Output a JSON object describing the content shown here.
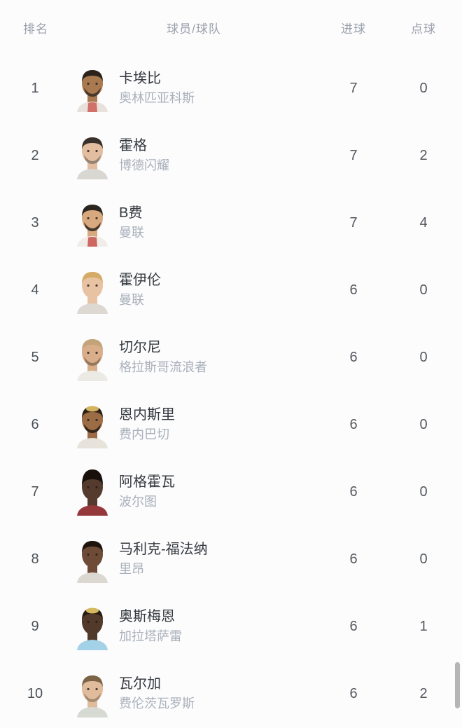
{
  "colors": {
    "bg": "#fcfcfd",
    "header_text": "#999fa9",
    "rank": "#4c5156",
    "name": "#34383d",
    "team": "#a9b0ba",
    "number": "#54585d",
    "scrollbar": "#b5b5b5"
  },
  "table": {
    "columns": {
      "rank": "排名",
      "player": "球员/球队",
      "goals": "进球",
      "penalties": "点球"
    },
    "rows": [
      {
        "rank": "1",
        "player": "卡埃比",
        "team": "奥林匹亚科斯",
        "goals": "7",
        "penalties": "0",
        "avatar": {
          "skin": "#a97a50",
          "hair": "#2b221a",
          "beard": "#3a2e24",
          "jersey": "#e9e2dc",
          "accent": "#c9544c"
        }
      },
      {
        "rank": "2",
        "player": "霍格",
        "team": "博德闪耀",
        "goals": "7",
        "penalties": "2",
        "avatar": {
          "skin": "#e3bd9f",
          "hair": "#38302a",
          "beard": "#8a796a",
          "jersey": "#d9d7d2"
        }
      },
      {
        "rank": "3",
        "player": "B费",
        "team": "曼联",
        "goals": "7",
        "penalties": "4",
        "avatar": {
          "skin": "#d8a87f",
          "hair": "#2c241e",
          "beard": "#2c241e",
          "jersey": "#f0ede8",
          "accent": "#c4453e"
        }
      },
      {
        "rank": "4",
        "player": "霍伊伦",
        "team": "曼联",
        "goals": "6",
        "penalties": "0",
        "avatar": {
          "skin": "#e7c3a3",
          "hair": "#d3ab66",
          "jersey": "#ddd8d1"
        }
      },
      {
        "rank": "5",
        "player": "切尔尼",
        "team": "格拉斯哥流浪者",
        "goals": "6",
        "penalties": "0",
        "avatar": {
          "skin": "#d9ae8a",
          "hair": "#c2a478",
          "beard": "#8a6f52",
          "jersey": "#eceae5"
        }
      },
      {
        "rank": "6",
        "player": "恩内斯里",
        "team": "费内巴切",
        "goals": "6",
        "penalties": "0",
        "avatar": {
          "skin": "#9c6c44",
          "hair": "#2e2017",
          "hair2": "#d2b45e",
          "beard": "#241a12",
          "jersey": "#e7e3db"
        }
      },
      {
        "rank": "7",
        "player": "阿格霍瓦",
        "team": "波尔图",
        "goals": "6",
        "penalties": "0",
        "avatar": {
          "skin": "#553b2d",
          "hair": "#17100c",
          "tallHair": true,
          "jersey": "#94383c"
        }
      },
      {
        "rank": "8",
        "player": "马利克-福法纳",
        "team": "里昂",
        "goals": "6",
        "penalties": "0",
        "avatar": {
          "skin": "#6e4b36",
          "hair": "#1d140e",
          "jersey": "#dbd7d1"
        }
      },
      {
        "rank": "9",
        "player": "奥斯梅恩",
        "team": "加拉塔萨雷",
        "goals": "6",
        "penalties": "1",
        "avatar": {
          "skin": "#523a2b",
          "hair": "#261b12",
          "hair2": "#d5b95f",
          "jersey": "#a3d2e8"
        }
      },
      {
        "rank": "10",
        "player": "瓦尔加",
        "team": "费伦茨瓦罗斯",
        "goals": "6",
        "penalties": "2",
        "avatar": {
          "skin": "#e0bb9c",
          "hair": "#7d6446",
          "beard": "#9b8266",
          "jersey": "#d6dad3"
        }
      }
    ]
  }
}
